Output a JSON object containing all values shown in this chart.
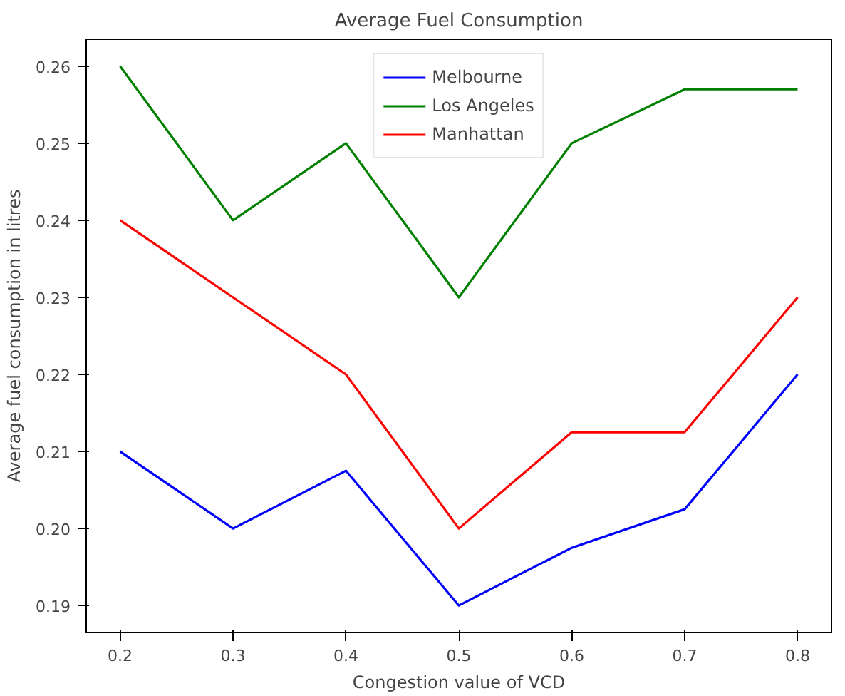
{
  "chart_data": {
    "type": "line",
    "title": "Average Fuel Consumption",
    "xlabel": "Congestion value of VCD",
    "ylabel": "Average fuel consumption in litres",
    "x": [
      0.2,
      0.3,
      0.4,
      0.5,
      0.6,
      0.7,
      0.8
    ],
    "series": [
      {
        "name": "Melbourne",
        "color": "#0000ff",
        "values": [
          0.21,
          0.2,
          0.2075,
          0.19,
          0.1975,
          0.2025,
          0.22
        ]
      },
      {
        "name": "Los Angeles",
        "color": "#008000",
        "values": [
          0.26,
          0.24,
          0.25,
          0.23,
          0.25,
          0.257,
          0.257
        ]
      },
      {
        "name": "Manhattan",
        "color": "#ff0000",
        "values": [
          0.24,
          0.23,
          0.22,
          0.2,
          0.2125,
          0.2125,
          0.23
        ]
      }
    ],
    "xlim": [
      0.17,
      0.83
    ],
    "ylim": [
      0.1865,
      0.2635
    ],
    "xticks": [
      {
        "value": 0.2,
        "label": "0.2"
      },
      {
        "value": 0.3,
        "label": "0.3"
      },
      {
        "value": 0.4,
        "label": "0.4"
      },
      {
        "value": 0.5,
        "label": "0.5"
      },
      {
        "value": 0.6,
        "label": "0.6"
      },
      {
        "value": 0.7,
        "label": "0.7"
      },
      {
        "value": 0.8,
        "label": "0.8"
      }
    ],
    "yticks": [
      {
        "value": 0.19,
        "label": "0.19"
      },
      {
        "value": 0.2,
        "label": "0.20"
      },
      {
        "value": 0.21,
        "label": "0.21"
      },
      {
        "value": 0.22,
        "label": "0.22"
      },
      {
        "value": 0.23,
        "label": "0.23"
      },
      {
        "value": 0.24,
        "label": "0.24"
      },
      {
        "value": 0.25,
        "label": "0.25"
      },
      {
        "value": 0.26,
        "label": "0.26"
      }
    ],
    "grid": false,
    "legend": "top",
    "marker": "none",
    "line_style": "solid"
  }
}
